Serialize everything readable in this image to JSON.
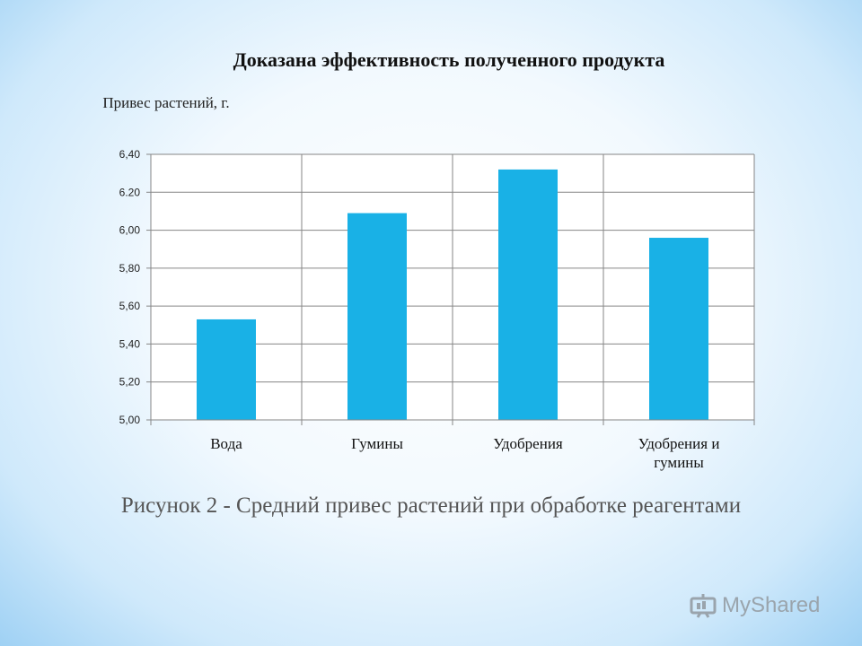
{
  "chart_data": {
    "type": "bar",
    "title": "Доказана эффективность полученного продукта",
    "ylabel": "Привес растений, г.",
    "categories": [
      "Вода",
      "Гумины",
      "Удобрения",
      "Удобрения и гумины"
    ],
    "values": [
      5.53,
      6.09,
      6.32,
      5.96
    ],
    "ylim": [
      5.0,
      6.4
    ],
    "yticks": [
      "5,00",
      "5,20",
      "5,40",
      "5,60",
      "5,80",
      "6,00",
      "6.20",
      "6,40"
    ],
    "grid": true,
    "bar_color": "#19b1e6"
  },
  "caption": "Рисунок 2 - Средний привес растений при обработке реагентами",
  "watermark": "MyShared"
}
